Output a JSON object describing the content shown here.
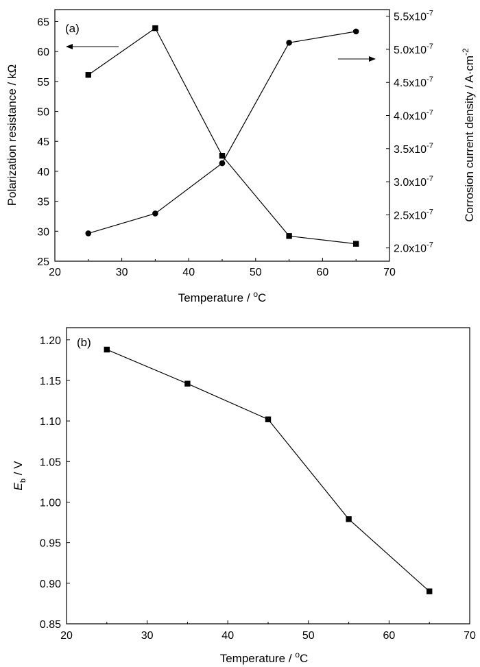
{
  "chart_data": [
    {
      "panel_label": "(a)",
      "type": "line",
      "x": [
        25,
        35,
        45,
        55,
        65
      ],
      "xlim": [
        20,
        70
      ],
      "xticks": [
        "20",
        "30",
        "40",
        "50",
        "60",
        "70"
      ],
      "xlabel": "Temperature / ",
      "xlabel_sup": "o",
      "xlabel_unit": "C",
      "ylabel_left": "Polarization resistance / kΩ",
      "ylim_left": [
        25,
        67
      ],
      "yticks_left": [
        "25",
        "30",
        "35",
        "40",
        "45",
        "50",
        "55",
        "60",
        "65"
      ],
      "ylabel_right": "Corrosion current density / A·cm",
      "ylabel_right_sup": "-2",
      "ylim_right": [
        1.8e-07,
        5.6e-07
      ],
      "yticks_right": [
        {
          "mant": "2.0x10",
          "exp": "-7"
        },
        {
          "mant": "2.5x10",
          "exp": "-7"
        },
        {
          "mant": "3.0x10",
          "exp": "-7"
        },
        {
          "mant": "3.5x10",
          "exp": "-7"
        },
        {
          "mant": "4.0x10",
          "exp": "-7"
        },
        {
          "mant": "4.5x10",
          "exp": "-7"
        },
        {
          "mant": "5.0x10",
          "exp": "-7"
        },
        {
          "mant": "5.5x10",
          "exp": "-7"
        }
      ],
      "series": [
        {
          "axis": "left",
          "marker": "square",
          "values": [
            56.1,
            63.9,
            42.6,
            29.2,
            27.9
          ]
        },
        {
          "axis": "right",
          "marker": "circle",
          "values": [
            2.22e-07,
            2.52e-07,
            3.28e-07,
            5.1e-07,
            5.27e-07
          ]
        }
      ],
      "arrows": [
        "left",
        "right"
      ],
      "grid": false
    },
    {
      "panel_label": "(b)",
      "type": "line",
      "x": [
        25,
        35,
        45,
        55,
        65
      ],
      "xlim": [
        20,
        70
      ],
      "xticks": [
        "20",
        "30",
        "40",
        "50",
        "60",
        "70"
      ],
      "xlabel": "Temperature / ",
      "xlabel_sup": "o",
      "xlabel_unit": "C",
      "ylabel_main": "E",
      "ylabel_sub": "b",
      "ylabel_unit": " / V",
      "ylim": [
        0.85,
        1.215
      ],
      "yticks": [
        "0.85",
        "0.90",
        "0.95",
        "1.00",
        "1.05",
        "1.10",
        "1.15",
        "1.20"
      ],
      "series": [
        {
          "marker": "square",
          "values": [
            1.188,
            1.146,
            1.102,
            0.979,
            0.89
          ]
        }
      ],
      "grid": false
    }
  ]
}
